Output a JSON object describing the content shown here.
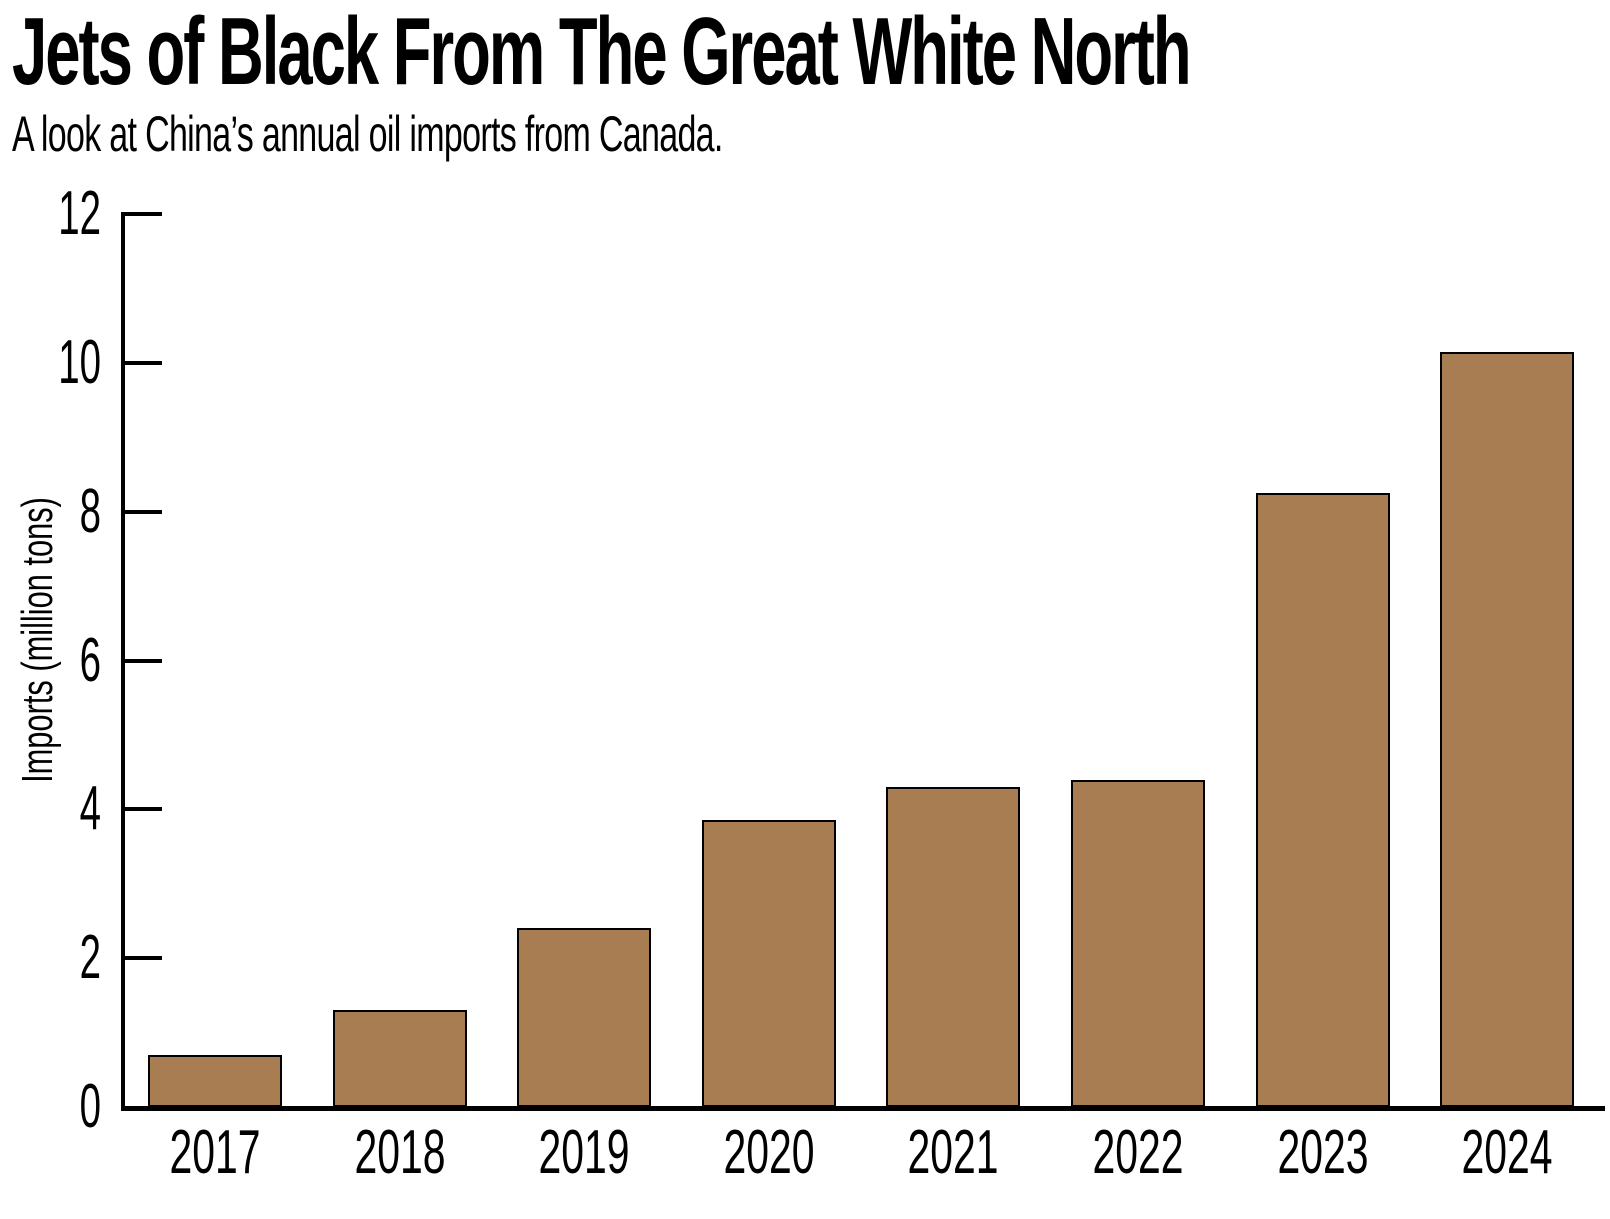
{
  "chart_data": {
    "type": "bar",
    "title": "Jets of Black From The Great White North",
    "subtitle": "A look at China’s annual oil imports from Canada.",
    "ylabel": "Imports (million tons)",
    "xlabel": "",
    "categories": [
      "2017",
      "2018",
      "2019",
      "2020",
      "2021",
      "2022",
      "2023",
      "2024"
    ],
    "values": [
      0.7,
      1.3,
      2.4,
      3.85,
      4.3,
      4.4,
      8.25,
      10.15
    ],
    "yticks": [
      "0",
      "2",
      "4",
      "6",
      "8",
      "10",
      "12"
    ],
    "ytick_values": [
      0,
      2,
      4,
      6,
      8,
      10,
      12
    ],
    "ylim": [
      0,
      12
    ],
    "grid": false,
    "legend": false,
    "colors": {
      "bar_fill": "#A97D52",
      "bar_border": "#000000",
      "axis": "#000000",
      "text": "#000000",
      "background": "#FFFFFF"
    }
  }
}
